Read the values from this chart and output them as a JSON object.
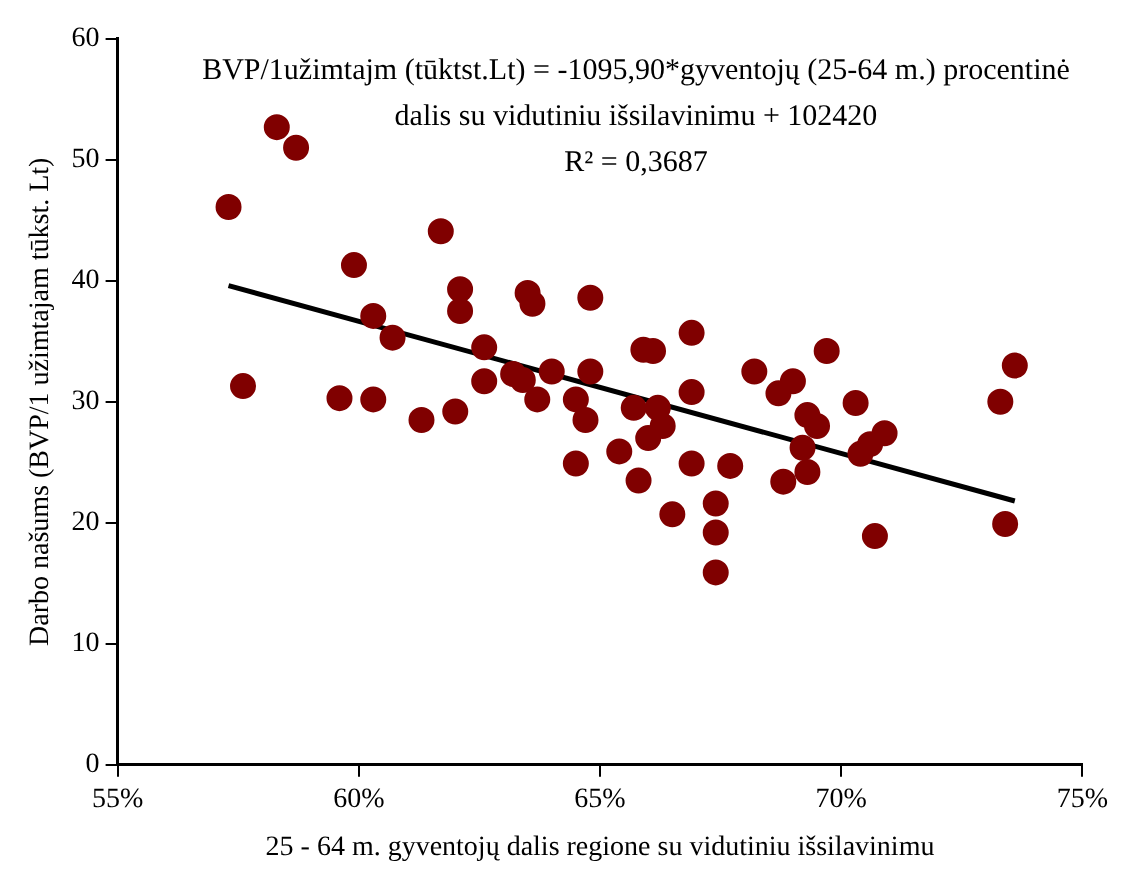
{
  "chart_data": {
    "type": "scatter",
    "xlabel": "25 - 64 m. gyventojų dalis regione su vidutiniu išsilavinimu",
    "ylabel": "Darbo našums (BVP/1 užimtajam tūkst. Lt)",
    "annotations": [
      "BVP/1užimtajm (tūktst.Lt) = -1095,90*gyventojų (25-64 m.) procentinė",
      "dalis su vidutiniu išsilavinimu + 102420",
      "R² = 0,3687"
    ],
    "xlim": [
      55,
      75
    ],
    "xticks": [
      {
        "value": 55,
        "label": "55%"
      },
      {
        "value": 60,
        "label": "60%"
      },
      {
        "value": 65,
        "label": "65%"
      },
      {
        "value": 70,
        "label": "70%"
      },
      {
        "value": 75,
        "label": "75%"
      }
    ],
    "ylim": [
      0,
      60
    ],
    "yticks": [
      0,
      10,
      20,
      30,
      40,
      50,
      60
    ],
    "grid": false,
    "legend": false,
    "series": [
      {
        "marker": "circle",
        "color": "#800000",
        "x": [
          57.3,
          58.3,
          58.7,
          57.6,
          59.9,
          59.6,
          60.3,
          60.3,
          60.7,
          61.3,
          61.7,
          62.1,
          62.1,
          62.0,
          62.6,
          62.6,
          63.2,
          63.4,
          63.5,
          63.6,
          63.7,
          64.0,
          64.5,
          64.5,
          64.7,
          64.8,
          64.8,
          65.4,
          65.7,
          65.8,
          65.9,
          66.1,
          66.0,
          66.2,
          66.3,
          66.5,
          66.9,
          66.9,
          66.9,
          67.4,
          67.4,
          67.4,
          67.7,
          68.2,
          68.8,
          68.7,
          69.0,
          69.3,
          69.3,
          69.2,
          69.5,
          69.7,
          70.3,
          70.4,
          70.6,
          70.7,
          70.9,
          73.3,
          73.4,
          73.6
        ],
        "values": [
          46.1,
          52.7,
          51.0,
          31.3,
          41.3,
          30.3,
          37.1,
          30.2,
          35.3,
          28.5,
          44.1,
          39.3,
          37.5,
          29.2,
          34.5,
          31.7,
          32.3,
          31.8,
          39.0,
          38.1,
          30.2,
          32.5,
          30.2,
          24.9,
          28.5,
          38.6,
          32.5,
          25.9,
          29.5,
          23.5,
          34.3,
          34.2,
          27.0,
          29.5,
          28.0,
          20.7,
          30.8,
          35.7,
          24.9,
          21.6,
          15.9,
          19.2,
          24.7,
          32.5,
          23.4,
          30.7,
          31.7,
          24.2,
          28.9,
          26.2,
          28.0,
          34.2,
          29.9,
          25.7,
          26.5,
          18.9,
          27.4,
          30.0,
          19.9,
          33.0
        ]
      },
      {
        "type": "line",
        "marker": "none",
        "color": "#000000",
        "x": [
          57.3,
          73.6
        ],
        "values": [
          39.6,
          21.8
        ]
      }
    ]
  }
}
